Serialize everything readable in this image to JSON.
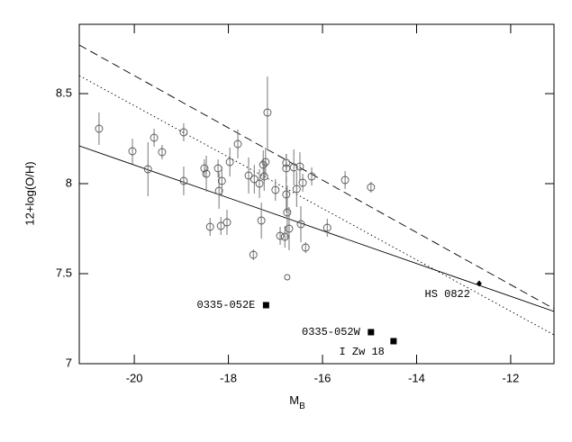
{
  "chart_data": {
    "type": "scatter",
    "x_label": {
      "text": "M",
      "subscript": "B"
    },
    "y_label": "12+log(O/H)",
    "xlim": [
      -21.17,
      -11.08
    ],
    "ylim": [
      7,
      8.885
    ],
    "xticks": [
      -20,
      -18,
      -16,
      -14,
      -12
    ],
    "yticks": [
      7,
      7.5,
      8,
      8.5
    ],
    "series": [
      {
        "color": "#555555",
        "marker": "open-circle",
        "x": [
          -20.75,
          -20.04,
          -19.71,
          -19.58,
          -19.41,
          -18.95,
          -18.95,
          -18.51,
          -18.47,
          -18.39,
          -18.22,
          -18.2,
          -18.14,
          -18.16,
          -18.03,
          -17.97,
          -17.8,
          -17.57,
          -17.45,
          -17.34,
          -17.3,
          -17.26,
          -17.21,
          -17.24,
          -17.17,
          -17.47,
          -17.0,
          -16.9,
          -16.8,
          -16.77,
          -16.77,
          -16.77,
          -16.75,
          -16.71,
          -16.75,
          -16.61,
          -16.55,
          -16.48,
          -16.46,
          -16.42,
          -16.36,
          -16.23,
          -15.9,
          -15.52,
          -14.97
        ],
        "values": [
          8.305,
          8.18,
          8.08,
          8.255,
          8.175,
          8.285,
          8.015,
          8.085,
          8.055,
          7.76,
          8.085,
          7.96,
          8.015,
          7.765,
          7.785,
          8.12,
          8.22,
          8.045,
          8.025,
          8.0,
          7.795,
          8.105,
          8.12,
          8.04,
          8.395,
          7.605,
          7.965,
          7.71,
          7.705,
          8.115,
          8.085,
          7.94,
          7.84,
          7.75,
          7.48,
          8.09,
          7.97,
          8.095,
          7.775,
          8.005,
          7.645,
          8.04,
          7.755,
          8.02,
          7.98
        ],
        "errors": [
          0.09,
          0.07,
          0.15,
          0.05,
          0.04,
          0.05,
          0.08,
          0.05,
          0.1,
          0.05,
          0.05,
          0.1,
          0.08,
          0.05,
          0.07,
          0.08,
          0.08,
          0.1,
          0.08,
          0.08,
          0.1,
          0.08,
          0.08,
          0.08,
          0.2,
          0.03,
          0.06,
          0.05,
          0.06,
          0.05,
          0.08,
          0.1,
          0.15,
          0.12,
          0,
          0.1,
          0.1,
          0.08,
          0.1,
          0.05,
          0.03,
          0.05,
          0.05,
          0.05,
          0.03
        ]
      },
      {
        "color": "#000000",
        "marker": "filled-square",
        "x": [
          -17.2,
          -14.97,
          -14.49
        ],
        "values": [
          7.325,
          7.175,
          7.125
        ],
        "labels": [
          "0335-052E",
          "0335-052W",
          "I Zw 18"
        ]
      },
      {
        "color": "#000000",
        "marker": "filled-diamond",
        "x": [
          -12.67
        ],
        "values": [
          7.445
        ],
        "labels": [
          "HS 0822"
        ]
      }
    ],
    "lines": [
      {
        "dash": "solid",
        "x": [
          -21.17,
          -11.08
        ],
        "values": [
          8.21,
          7.29
        ]
      },
      {
        "dash": "dashed",
        "x": [
          -21.17,
          -11.08
        ],
        "values": [
          8.77,
          7.305
        ]
      },
      {
        "dash": "dotted",
        "x": [
          -21.17,
          -11.08
        ],
        "values": [
          8.6,
          7.16
        ]
      }
    ]
  }
}
